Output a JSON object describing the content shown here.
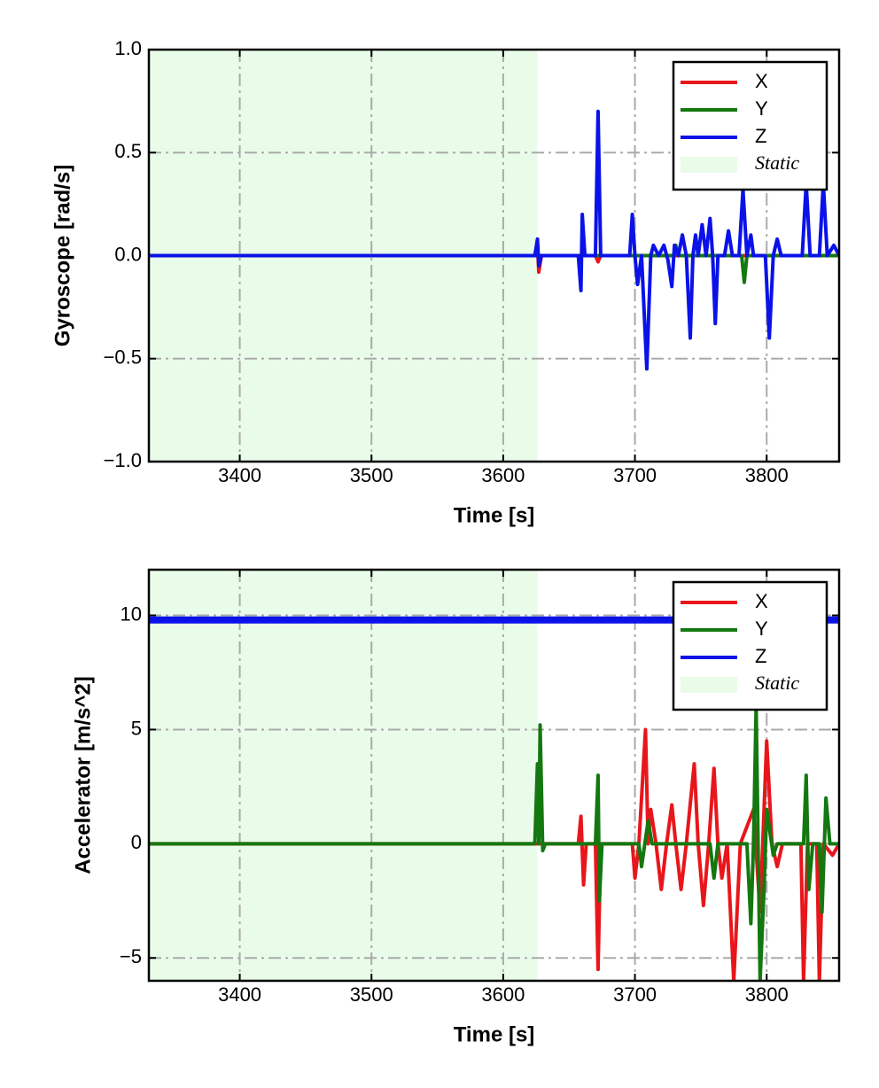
{
  "chart_data": [
    {
      "type": "line",
      "xlabel": "Time [s]",
      "ylabel": "Gyroscope [rad/s]",
      "xlim": [
        3331,
        3855
      ],
      "ylim": [
        -1.0,
        1.0
      ],
      "xticks": [
        3400,
        3500,
        3600,
        3700,
        3800
      ],
      "yticks": [
        {
          "value": -1.0,
          "label": "−1.0"
        },
        {
          "value": -0.5,
          "label": "−0.5"
        },
        {
          "value": 0.0,
          "label": "0.0"
        },
        {
          "value": 0.5,
          "label": "0.5"
        },
        {
          "value": 1.0,
          "label": "1.0"
        }
      ],
      "grid": true,
      "legend": "upper right",
      "shaded_region": {
        "name": "Static",
        "x": [
          3331,
          3626
        ],
        "color": "#e9fce9"
      },
      "series": [
        {
          "name": "X",
          "color": "#e8161b",
          "x": [
            3331,
            3625,
            3626,
            3627,
            3629,
            3670,
            3672,
            3674,
            3855
          ],
          "values": [
            0,
            0,
            0.05,
            -0.08,
            0,
            0,
            -0.03,
            0,
            0
          ]
        },
        {
          "name": "Y",
          "color": "#13780f",
          "x": [
            3331,
            3730,
            3731,
            3733,
            3781,
            3783,
            3785,
            3855
          ],
          "values": [
            0,
            0,
            0.05,
            0,
            0,
            -0.13,
            0,
            0
          ]
        },
        {
          "name": "Z",
          "color": "#0a12e8",
          "x": [
            3331,
            3624,
            3626,
            3627,
            3629,
            3657,
            3659,
            3660,
            3662,
            3670,
            3672,
            3674,
            3696,
            3698,
            3700,
            3702,
            3705,
            3709,
            3712,
            3714,
            3718,
            3722,
            3725,
            3728,
            3730,
            3733,
            3736,
            3739,
            3742,
            3744,
            3746,
            3748,
            3751,
            3754,
            3757,
            3759,
            3761,
            3763,
            3768,
            3771,
            3774,
            3779,
            3782,
            3785,
            3788,
            3790,
            3799,
            3802,
            3805,
            3808,
            3811,
            3827,
            3830,
            3833,
            3840,
            3843,
            3846,
            3851,
            3855
          ],
          "values": [
            0,
            0,
            0.08,
            -0.05,
            0,
            0,
            -0.17,
            0.2,
            0,
            0,
            0.7,
            0,
            0,
            0.2,
            0,
            -0.14,
            0,
            -0.55,
            0,
            0.05,
            0,
            0.05,
            -0.02,
            -0.15,
            0.05,
            0,
            0.1,
            0,
            -0.4,
            0,
            0.1,
            0,
            0.15,
            0,
            0.18,
            0,
            -0.33,
            0,
            0,
            0.12,
            0,
            0,
            0.32,
            0,
            0.1,
            0,
            0,
            -0.4,
            0,
            0.08,
            0,
            0,
            0.35,
            0,
            0,
            0.35,
            0,
            0.05,
            0
          ]
        }
      ]
    },
    {
      "type": "line",
      "xlabel": "Time [s]",
      "ylabel": "Accelerator [m/s^2]",
      "xlim": [
        3331,
        3855
      ],
      "ylim": [
        -6,
        12
      ],
      "xticks": [
        3400,
        3500,
        3600,
        3700,
        3800
      ],
      "yticks": [
        {
          "value": -5,
          "label": "−5"
        },
        0,
        5,
        10
      ],
      "grid": true,
      "legend": "upper right",
      "shaded_region": {
        "name": "Static",
        "x": [
          3331,
          3626
        ],
        "color": "#e9fce9"
      },
      "series": [
        {
          "name": "X",
          "color": "#e8161b",
          "x": [
            3331,
            3657,
            3659,
            3661,
            3663,
            3670,
            3672,
            3674,
            3698,
            3700,
            3703,
            3708,
            3710,
            3712,
            3716,
            3720,
            3724,
            3728,
            3731,
            3735,
            3739,
            3745,
            3748,
            3752,
            3756,
            3760,
            3763,
            3766,
            3770,
            3775,
            3780,
            3790,
            3795,
            3800,
            3804,
            3808,
            3812,
            3826,
            3828,
            3831,
            3838,
            3840,
            3843,
            3850,
            3855
          ],
          "values": [
            0,
            0,
            1.2,
            -1.8,
            0,
            0,
            -5.5,
            0,
            0,
            -1.5,
            0,
            5,
            0,
            1.5,
            0,
            -2,
            0,
            1.7,
            0,
            -2,
            0,
            3.5,
            0,
            -2.7,
            0,
            3.3,
            0,
            -1.5,
            0,
            -6,
            0,
            1.5,
            -3,
            4.5,
            0,
            -1,
            0,
            0,
            -6,
            0,
            0,
            -6,
            0,
            -0.5,
            0
          ]
        },
        {
          "name": "Y",
          "color": "#13780f",
          "x": [
            3331,
            3624,
            3626,
            3627,
            3628,
            3630,
            3632,
            3670,
            3672,
            3673,
            3675,
            3703,
            3705,
            3710,
            3713,
            3757,
            3760,
            3763,
            3785,
            3788,
            3790,
            3792,
            3795,
            3798,
            3800,
            3805,
            3808,
            3828,
            3830,
            3832,
            3835,
            3840,
            3842,
            3845,
            3848,
            3855
          ],
          "values": [
            0,
            0,
            3.5,
            0,
            5.2,
            -0.3,
            0,
            0,
            3,
            -2.5,
            0,
            0,
            -1,
            1,
            0,
            0,
            -1.5,
            0,
            0,
            -3.5,
            0,
            6,
            -6,
            -2,
            1.5,
            -0.5,
            0,
            0,
            3,
            -2,
            0,
            0,
            -3,
            2,
            0,
            0
          ]
        },
        {
          "name": "Z",
          "color": "#0a12e8",
          "x": [
            3331,
            3855
          ],
          "values": [
            9.8,
            9.8
          ]
        }
      ]
    }
  ]
}
